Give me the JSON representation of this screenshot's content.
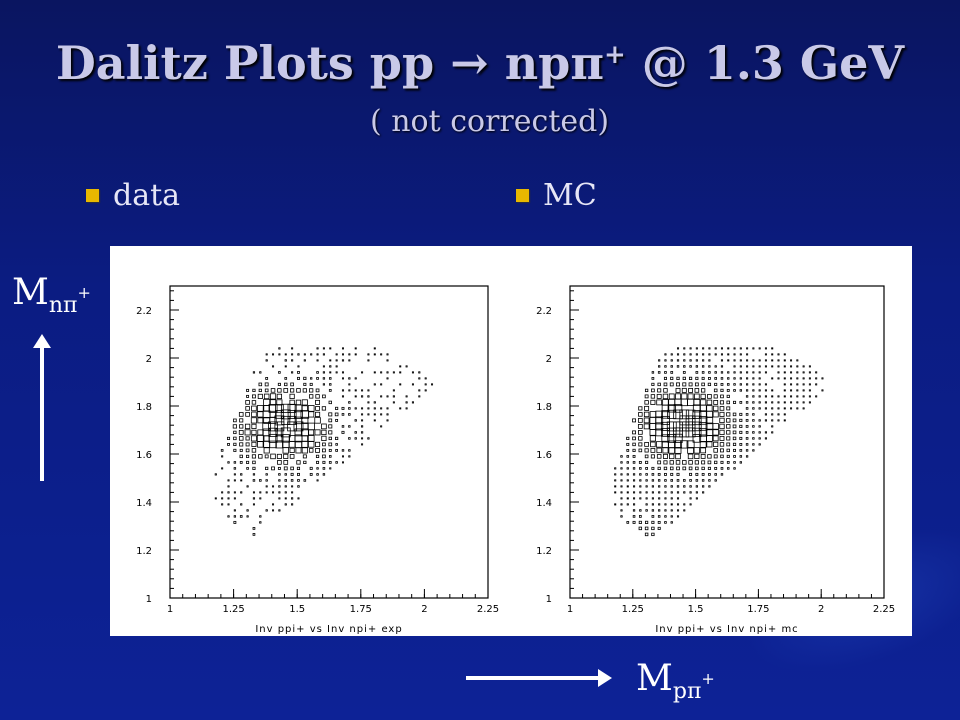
{
  "slide": {
    "title_main": "Dalitz Plots pp → npπ",
    "title_sup": "+",
    "title_tail": " @ 1.3 GeV",
    "subtitle": "( not corrected)",
    "bullets": [
      "data",
      "MC"
    ],
    "ylabel_main": "M",
    "ylabel_sub": "nπ",
    "ylabel_sup": "+",
    "xlabel_main": "M",
    "xlabel_sub": "pπ",
    "xlabel_sup": "+",
    "colors": {
      "bullet": "#e8b800",
      "title": "#c9c9e8",
      "background": "#0b1c82"
    }
  },
  "chart_data": [
    {
      "type": "heatmap",
      "xlabel": "Inv ppi+ vs Inv npi+ exp",
      "xlim": [
        1,
        2.25
      ],
      "ylim": [
        1,
        2.3
      ],
      "xticks": [
        "1",
        "1.25",
        "1.5",
        "1.75",
        "2",
        "2.25"
      ],
      "yticks": [
        "1",
        "1.2",
        "1.4",
        "1.6",
        "1.8",
        "2",
        "2.2"
      ],
      "peak": [
        1.45,
        1.72
      ],
      "density": "sparse"
    },
    {
      "type": "heatmap",
      "xlabel": "Inv ppi+ vs Inv npi+ mc",
      "xlim": [
        1,
        2.25
      ],
      "ylim": [
        1,
        2.3
      ],
      "xticks": [
        "1",
        "1.25",
        "1.5",
        "1.75",
        "2",
        "2.25"
      ],
      "yticks": [
        "1",
        "1.2",
        "1.4",
        "1.6",
        "1.8",
        "2",
        "2.2"
      ],
      "peak": [
        1.45,
        1.72
      ],
      "density": "dense"
    }
  ]
}
